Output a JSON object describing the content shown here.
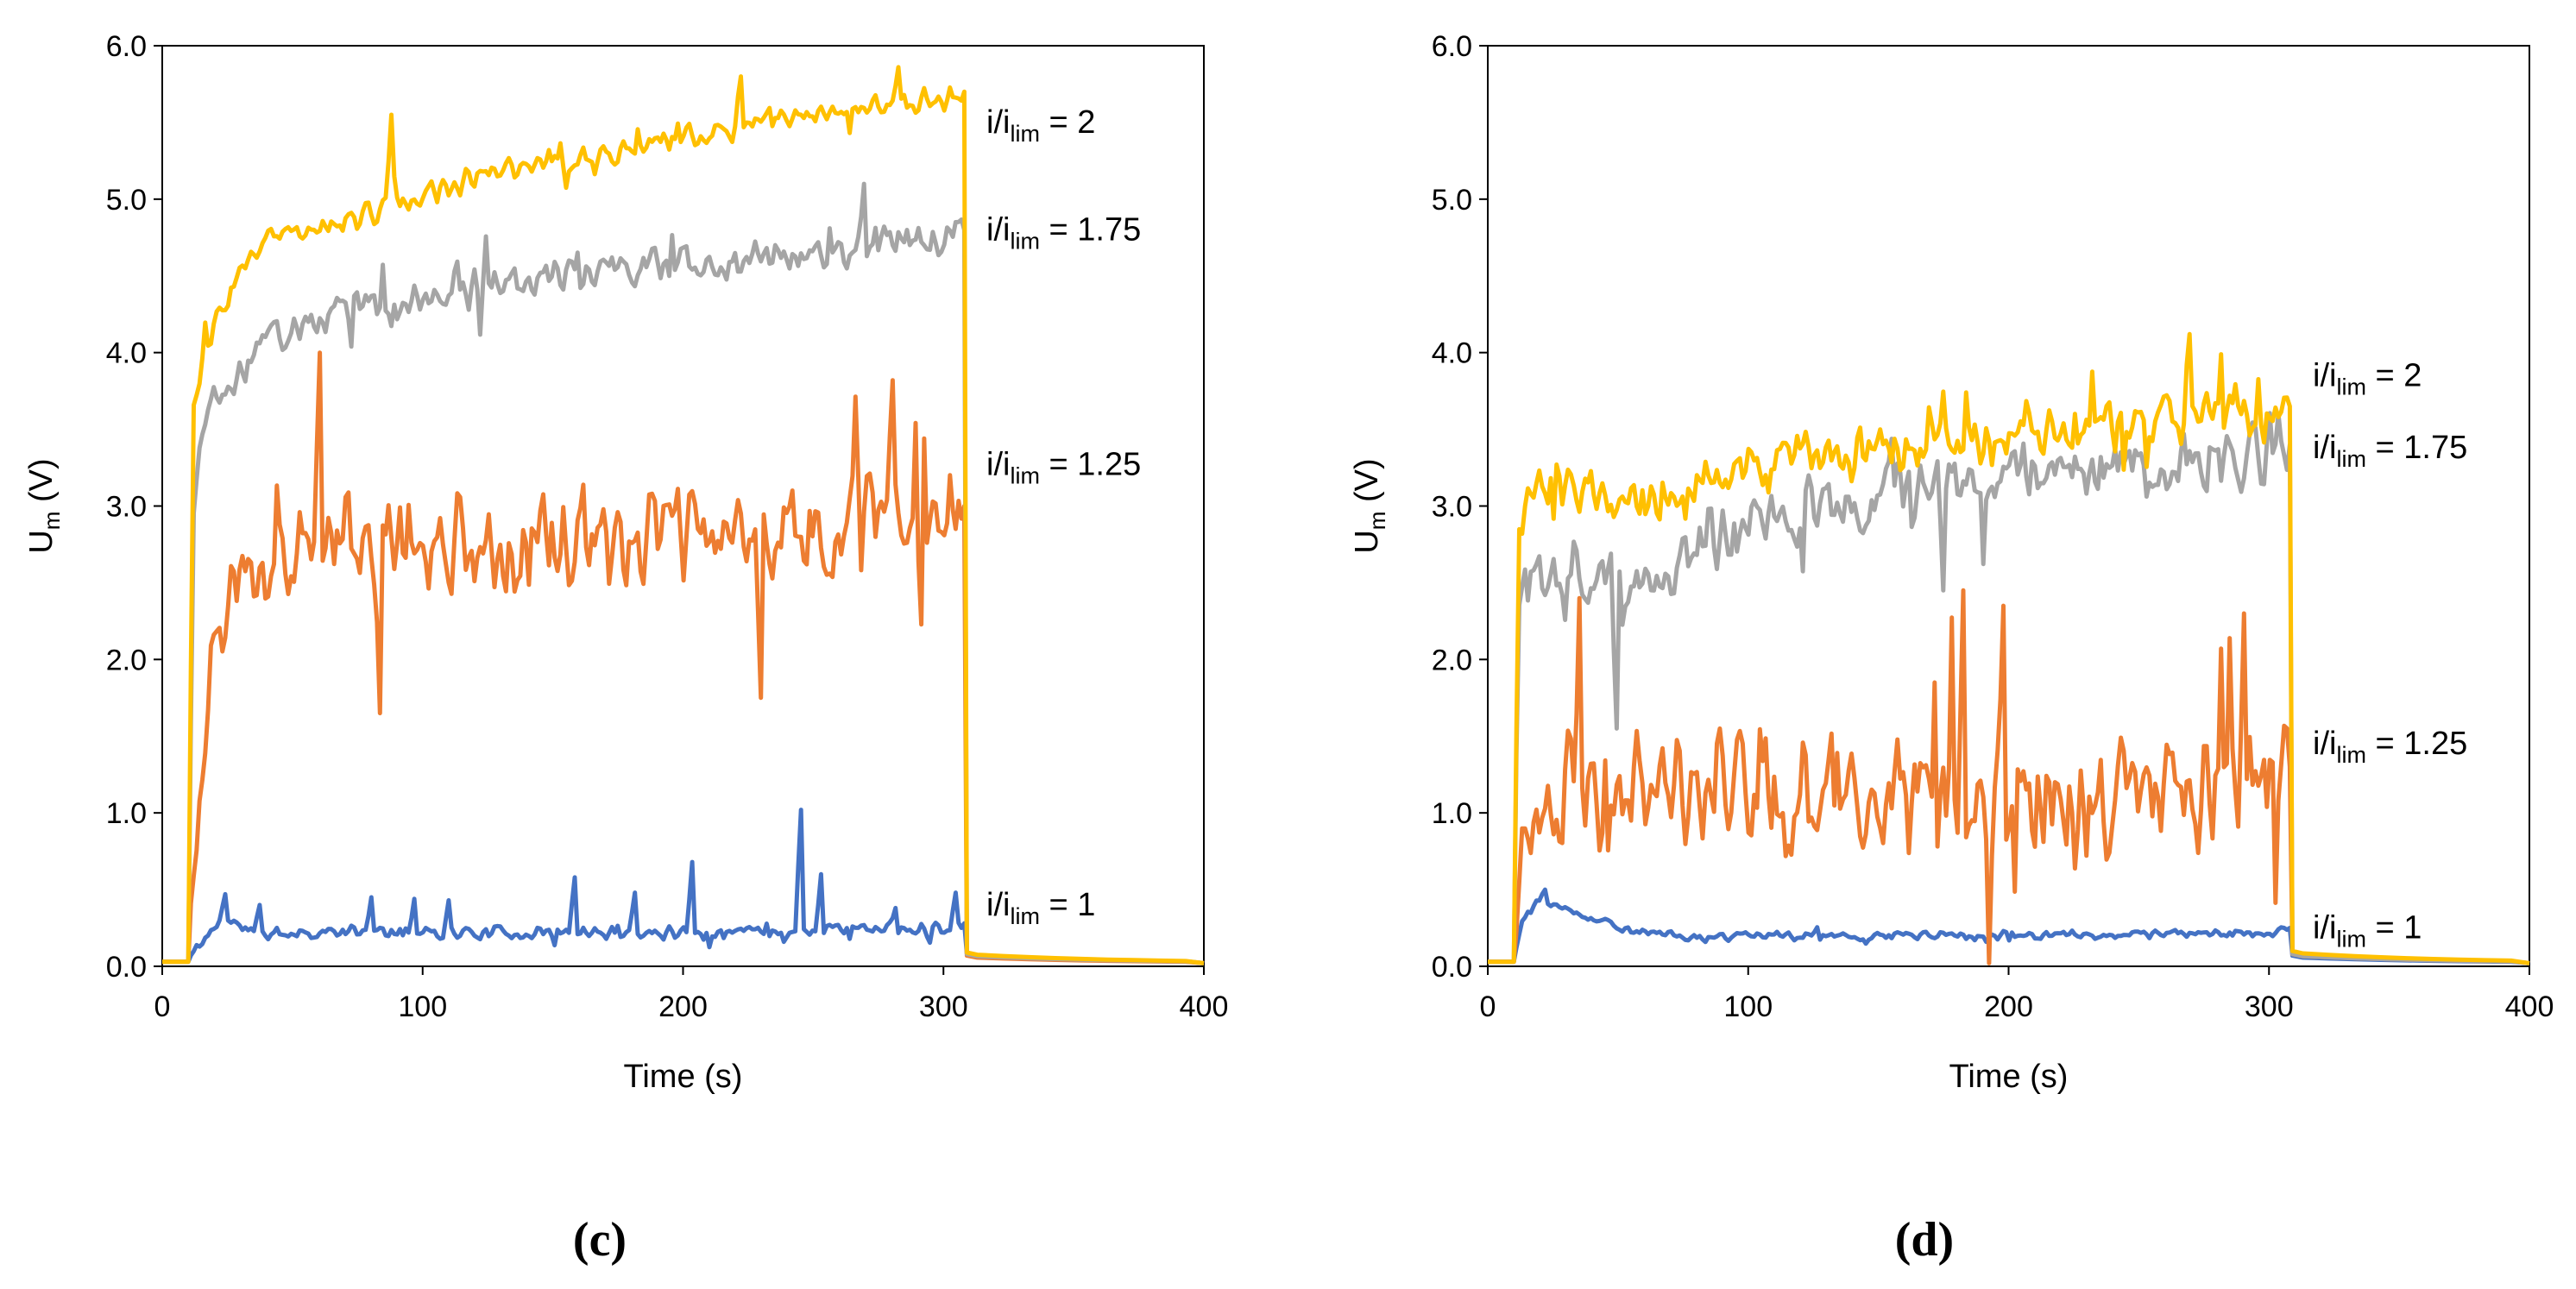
{
  "chart_data": [
    {
      "type": "line",
      "panel_label": "(c)",
      "xlabel": "Time (s)",
      "ylabel": {
        "main": "U",
        "sub": "m",
        "rest": " (V)"
      },
      "xlim": [
        0,
        400
      ],
      "ylim": [
        0,
        6
      ],
      "xticks": [
        "0",
        "100",
        "200",
        "300",
        "400"
      ],
      "yticks": [
        "0.0",
        "1.0",
        "2.0",
        "3.0",
        "4.0",
        "5.0",
        "6.0"
      ],
      "grid": false,
      "noise_seed": 11,
      "series": [
        {
          "name": "i/ilim = 1",
          "label": {
            "pre": "i/i",
            "sub": "lim",
            "post": " = 1"
          },
          "color": "#4472C4",
          "label_y": 0.4,
          "start": 10,
          "end": 308,
          "after_level": 0.05,
          "baseline": 0.03,
          "levels": [
            [
              10,
              0.05
            ],
            [
              15,
              0.15
            ],
            [
              22,
              0.3
            ],
            [
              40,
              0.22
            ],
            [
              100,
              0.22
            ],
            [
              200,
              0.22
            ],
            [
              300,
              0.25
            ],
            [
              308,
              0.28
            ]
          ],
          "noise": 0.05,
          "spikes": [
            [
              24,
              0.47
            ],
            [
              37,
              0.4
            ],
            [
              80,
              0.45
            ],
            [
              97,
              0.44
            ],
            [
              110,
              0.43
            ],
            [
              158,
              0.58
            ],
            [
              182,
              0.48
            ],
            [
              204,
              0.68
            ],
            [
              245,
              1.02
            ],
            [
              253,
              0.6
            ],
            [
              282,
              0.38
            ],
            [
              305,
              0.48
            ]
          ]
        },
        {
          "name": "i/ilim = 1.25",
          "label": {
            "pre": "i/i",
            "sub": "lim",
            "post": " = 1.25"
          },
          "color": "#ED7D31",
          "label_y": 3.27,
          "start": 10,
          "end": 308,
          "after_level": 0.04,
          "baseline": 0.03,
          "levels": [
            [
              10,
              0.1
            ],
            [
              14,
              1.0
            ],
            [
              18,
              1.9
            ],
            [
              25,
              2.5
            ],
            [
              40,
              2.6
            ],
            [
              60,
              2.8
            ],
            [
              100,
              2.75
            ],
            [
              200,
              2.8
            ],
            [
              300,
              2.9
            ],
            [
              308,
              3.0
            ]
          ],
          "noise": 0.38,
          "spikes": [
            [
              61,
              4.0
            ],
            [
              84,
              1.65
            ],
            [
              230,
              1.75
            ],
            [
              280,
              3.82
            ]
          ]
        },
        {
          "name": "i/ilim = 1.75",
          "label": {
            "pre": "i/i",
            "sub": "lim",
            "post": " = 1.75"
          },
          "color": "#A5A5A5",
          "label_y": 4.8,
          "start": 10,
          "end": 308,
          "after_level": 0.05,
          "baseline": 0.03,
          "levels": [
            [
              10,
              0.2
            ],
            [
              12,
              3.0
            ],
            [
              15,
              3.55
            ],
            [
              25,
              3.8
            ],
            [
              40,
              4.1
            ],
            [
              80,
              4.3
            ],
            [
              150,
              4.5
            ],
            [
              250,
              4.65
            ],
            [
              300,
              4.75
            ],
            [
              308,
              4.8
            ]
          ],
          "noise": 0.14,
          "spikes": [
            [
              269,
              5.1
            ]
          ]
        },
        {
          "name": "i/ilim = 2",
          "label": {
            "pre": "i/i",
            "sub": "lim",
            "post": " = 2"
          },
          "color": "#FFC000",
          "label_y": 5.5,
          "start": 10,
          "end": 308,
          "after_level": 0.06,
          "baseline": 0.03,
          "levels": [
            [
              10,
              0.2
            ],
            [
              12,
              3.7
            ],
            [
              16,
              4.0
            ],
            [
              25,
              4.4
            ],
            [
              40,
              4.75
            ],
            [
              80,
              4.9
            ],
            [
              120,
              5.15
            ],
            [
              200,
              5.4
            ],
            [
              250,
              5.55
            ],
            [
              300,
              5.65
            ],
            [
              308,
              5.7
            ]
          ],
          "noise": 0.1,
          "spikes": [
            [
              88,
              5.55
            ],
            [
              222,
              5.8
            ],
            [
              283,
              5.86
            ]
          ]
        }
      ]
    },
    {
      "type": "line",
      "panel_label": "(d)",
      "xlabel": "Time (s)",
      "ylabel": {
        "main": "U",
        "sub": "m",
        "rest": " (V)"
      },
      "xlim": [
        0,
        400
      ],
      "ylim": [
        0,
        6
      ],
      "xticks": [
        "0",
        "100",
        "200",
        "300",
        "400"
      ],
      "yticks": [
        "0.0",
        "1.0",
        "2.0",
        "3.0",
        "4.0",
        "5.0",
        "6.0"
      ],
      "grid": false,
      "noise_seed": 29,
      "series": [
        {
          "name": "i/ilim = 1",
          "label": {
            "pre": "i/i",
            "sub": "lim",
            "post": " = 1"
          },
          "color": "#4472C4",
          "label_y": 0.25,
          "start": 10,
          "end": 308,
          "after_level": 0.04,
          "baseline": 0.03,
          "levels": [
            [
              10,
              0.05
            ],
            [
              13,
              0.3
            ],
            [
              20,
              0.45
            ],
            [
              30,
              0.38
            ],
            [
              50,
              0.25
            ],
            [
              80,
              0.18
            ],
            [
              100,
              0.2
            ],
            [
              200,
              0.2
            ],
            [
              300,
              0.22
            ],
            [
              308,
              0.25
            ]
          ],
          "noise": 0.035,
          "spikes": [
            [
              22,
              0.5
            ]
          ]
        },
        {
          "name": "i/ilim = 1.25",
          "label": {
            "pre": "i/i",
            "sub": "lim",
            "post": " = 1.25"
          },
          "color": "#ED7D31",
          "label_y": 1.45,
          "start": 10,
          "end": 308,
          "after_level": 0.05,
          "baseline": 0.03,
          "levels": [
            [
              10,
              0.1
            ],
            [
              13,
              0.8
            ],
            [
              20,
              1.2
            ],
            [
              60,
              1.1
            ],
            [
              100,
              1.1
            ],
            [
              150,
              1.1
            ],
            [
              200,
              1.05
            ],
            [
              250,
              1.05
            ],
            [
              300,
              1.2
            ],
            [
              308,
              1.3
            ]
          ],
          "noise": 0.5,
          "spikes": [
            [
              35,
              2.4
            ],
            [
              183,
              2.45
            ],
            [
              198,
              2.35
            ],
            [
              290,
              2.3
            ]
          ]
        },
        {
          "name": "i/ilim = 1.75",
          "label": {
            "pre": "i/i",
            "sub": "lim",
            "post": " = 1.75"
          },
          "color": "#A5A5A5",
          "label_y": 3.38,
          "start": 10,
          "end": 308,
          "after_level": 0.05,
          "baseline": 0.03,
          "levels": [
            [
              10,
              0.2
            ],
            [
              12,
              2.4
            ],
            [
              20,
              2.65
            ],
            [
              40,
              2.5
            ],
            [
              60,
              2.5
            ],
            [
              100,
              2.95
            ],
            [
              150,
              3.05
            ],
            [
              200,
              3.2
            ],
            [
              250,
              3.25
            ],
            [
              300,
              3.35
            ],
            [
              308,
              3.4
            ]
          ],
          "noise": 0.28,
          "spikes": [
            [
              50,
              1.55
            ],
            [
              175,
              2.45
            ]
          ]
        },
        {
          "name": "i/ilim = 2",
          "label": {
            "pre": "i/i",
            "sub": "lim",
            "post": " = 2"
          },
          "color": "#FFC000",
          "label_y": 3.85,
          "start": 10,
          "end": 308,
          "after_level": 0.07,
          "baseline": 0.03,
          "levels": [
            [
              10,
              0.2
            ],
            [
              12,
              2.9
            ],
            [
              20,
              3.15
            ],
            [
              60,
              3.05
            ],
            [
              100,
              3.25
            ],
            [
              150,
              3.35
            ],
            [
              200,
              3.45
            ],
            [
              250,
              3.55
            ],
            [
              300,
              3.6
            ],
            [
              308,
              3.65
            ]
          ],
          "noise": 0.2,
          "spikes": [
            [
              270,
              4.12
            ]
          ]
        }
      ]
    }
  ]
}
